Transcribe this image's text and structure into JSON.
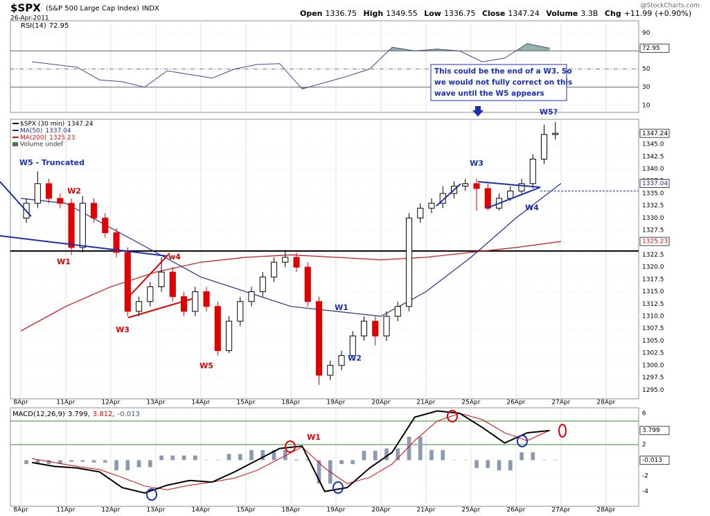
{
  "header": {
    "symbol": "$SPX",
    "name": "(S&P 500 Large Cap Index)",
    "exchange": "INDX",
    "date": "26-Apr-2011",
    "open_label": "Open",
    "open": 1336.75,
    "high_label": "High",
    "high": 1349.55,
    "low_label": "Low",
    "low": 1336.75,
    "close_label": "Close",
    "volume_label": "Volume",
    "volume": "3.3B",
    "chg_label": "Chg",
    "chg": "+11.99",
    "chg_pct": "(+0.90%)",
    "credit": "@StockCharts.com"
  },
  "chart_data": [
    {
      "type": "candlestick",
      "title": "$SPX (30 min)",
      "open": [
        1330,
        1333,
        1337,
        1334,
        1333,
        1324,
        1333,
        1330,
        1327,
        1323,
        1311,
        1313,
        1316,
        1319,
        1314,
        1311,
        1315,
        1312,
        1303,
        1309,
        1313,
        1315,
        1318,
        1321,
        1322,
        1320,
        1313,
        1298,
        1300,
        1302,
        1306,
        1309,
        1306,
        1310,
        1312,
        1330,
        1332,
        1333,
        1335,
        1336.5,
        1337,
        1336,
        1332,
        1334,
        1335.5,
        1337,
        1342,
        1347
      ],
      "high": [
        1334,
        1339.5,
        1338,
        1335,
        1334,
        1334.5,
        1334,
        1331,
        1328,
        1324,
        1314,
        1317,
        1322,
        1320,
        1315,
        1316,
        1316,
        1313,
        1310,
        1314,
        1316,
        1319,
        1322,
        1323.5,
        1323,
        1321,
        1314,
        1301,
        1303,
        1307,
        1310,
        1310,
        1311,
        1313,
        1331,
        1333,
        1334,
        1336.5,
        1337.5,
        1338,
        1338,
        1337,
        1335,
        1336.5,
        1338,
        1343,
        1349,
        1349.55
      ],
      "low": [
        1329,
        1332,
        1333,
        1332,
        1322.5,
        1323,
        1329,
        1326,
        1322,
        1310,
        1310,
        1312,
        1315,
        1313,
        1310,
        1310,
        1311,
        1302,
        1302.5,
        1308,
        1312,
        1314,
        1317,
        1320,
        1319,
        1312,
        1296,
        1297,
        1299,
        1301,
        1305,
        1304,
        1305,
        1309,
        1311,
        1329,
        1331,
        1332,
        1334,
        1335.5,
        1331.5,
        1331.5,
        1331.5,
        1333.5,
        1335,
        1336,
        1341,
        1346
      ],
      "close": [
        1333,
        1337,
        1334,
        1333,
        1324,
        1333,
        1330,
        1327,
        1323,
        1311,
        1313,
        1316,
        1319,
        1314,
        1311,
        1315,
        1312,
        1303,
        1309,
        1313,
        1315,
        1318,
        1321,
        1322,
        1320,
        1313,
        1298,
        1300,
        1302,
        1306,
        1309,
        1306,
        1310,
        1312,
        1330,
        1332,
        1333,
        1335,
        1336.5,
        1337,
        1336,
        1332,
        1334,
        1335.5,
        1337,
        1342,
        1347,
        1347.24
      ],
      "up_color": "#000000",
      "down_color": "#e00000",
      "series": [
        {
          "name": "MA(50)",
          "color": "#1f2f8f",
          "values": [
            1334,
            1333,
            1328,
            1323,
            1318,
            1315,
            1312,
            1311,
            1310,
            1315,
            1322,
            1330,
            1337.04
          ]
        },
        {
          "name": "MA(200)",
          "color": "#d01010",
          "values": [
            1307,
            1312,
            1316,
            1319,
            1321,
            1322,
            1322.5,
            1322,
            1321.5,
            1322,
            1323,
            1324,
            1325.23
          ]
        }
      ],
      "volume_label": "Volume undef",
      "ylim": [
        1293.2,
        1350.1
      ],
      "yticks": [
        {
          "value": 1295,
          "label": "1295.0"
        },
        1297.5,
        {
          "value": 1300,
          "label": "1300.0"
        },
        1302.5,
        {
          "value": 1305,
          "label": "1305.0"
        },
        1307.5,
        {
          "value": 1310,
          "label": "1310.0"
        },
        1312.5,
        {
          "value": 1315,
          "label": "1315.0"
        },
        1317.5,
        {
          "value": 1320,
          "label": "1320.0"
        },
        1322.5,
        {
          "value": 1325,
          "label": "1325.0"
        },
        1327.5,
        {
          "value": 1330,
          "label": "1330.0"
        },
        1332.5,
        {
          "value": 1335,
          "label": "1335.0"
        },
        1337.5,
        {
          "value": 1340,
          "label": "1340.0"
        },
        1342.5,
        {
          "value": 1345,
          "label": "1345.0"
        }
      ],
      "xlim": [
        -0.92,
        54.9
      ],
      "xticks": [
        {
          "value": 0,
          "label": "8Apr"
        },
        {
          "value": 4,
          "label": "11Apr"
        },
        {
          "value": 8,
          "label": "12Apr"
        },
        {
          "value": 12,
          "label": "13Apr"
        },
        {
          "value": 16,
          "label": "14Apr"
        },
        {
          "value": 20,
          "label": "15Apr"
        },
        {
          "value": 24,
          "label": "18Apr"
        },
        {
          "value": 28,
          "label": "19Apr"
        },
        {
          "value": 32,
          "label": "20Apr"
        },
        {
          "value": 36,
          "label": "21Apr"
        },
        {
          "value": 40,
          "label": "25Apr"
        },
        {
          "value": 44,
          "label": "26Apr"
        },
        {
          "value": 48,
          "label": "27Apr"
        },
        {
          "value": 52,
          "label": "28Apr"
        }
      ],
      "grid": true,
      "support_line": 1323.3,
      "dashed_line": 1335.5,
      "annotations": [
        {
          "text": "W5 - Truncated",
          "color": "#1a2fb0"
        },
        {
          "text": "W2",
          "color": "#e00000"
        },
        {
          "text": "W1",
          "color": "#e00000"
        },
        {
          "text": "W3",
          "color": "#e00000"
        },
        {
          "text": "w4",
          "color": "#e00000"
        },
        {
          "text": "W5",
          "color": "#e00000"
        },
        {
          "text": "W1",
          "color": "#1a2fb0"
        },
        {
          "text": "W2",
          "color": "#1a2fb0"
        },
        {
          "text": "W3",
          "color": "#1a2fb0"
        },
        {
          "text": "W4",
          "color": "#1a2fb0"
        },
        {
          "text": "W5?",
          "color": "#1a2fb0"
        }
      ],
      "note": [
        "This could be the end of a W3. So",
        "we would not fully correct on this",
        "wave until the W5 appears"
      ]
    },
    {
      "type": "line",
      "title": "RSI(14)",
      "color": "#3a4aa0",
      "fill_color": "#8fb5a5",
      "values": [
        58,
        55,
        52,
        38,
        36,
        30,
        48,
        44,
        40,
        50,
        55,
        56,
        28,
        35,
        42,
        50,
        74,
        70,
        72,
        70,
        58,
        62,
        78,
        72.95
      ],
      "ylim": [
        2.2,
        103.2
      ],
      "yticks": [
        10,
        30,
        50,
        70,
        90
      ],
      "levels": [
        30,
        70
      ],
      "midline": 50
    },
    {
      "type": "macd",
      "title": "MACD(12,26,9)",
      "separator": ",",
      "series": [
        {
          "color": "#000000",
          "values": [
            -0.3,
            -0.8,
            -1.0,
            -1.5,
            -3.5,
            -4.2,
            -3.2,
            -2.6,
            -2.8,
            -1.5,
            0,
            1.5,
            1.8,
            -4.0,
            -3.5,
            -1.0,
            1.0,
            5.5,
            6.3,
            6.0,
            4.2,
            2.2,
            3.5,
            3.799
          ]
        },
        {
          "color": "#e00000",
          "values": [
            0.2,
            -0.3,
            -0.8,
            -1.2,
            -2.2,
            -3.3,
            -3.8,
            -3.2,
            -2.8,
            -2.3,
            -1.3,
            0.2,
            1.7,
            -1.0,
            -3.0,
            -2.2,
            -0.5,
            2.5,
            5.0,
            6.0,
            5.2,
            3.5,
            2.5,
            3.812
          ]
        },
        {
          "color": "#8a9ab0",
          "values": [
            -0.5,
            -0.5,
            -0.2,
            -0.3,
            -1.3,
            -0.9,
            0.6,
            0.6,
            0,
            0.8,
            1.3,
            1.3,
            0.1,
            -3.0,
            -0.5,
            1.2,
            1.5,
            3.0,
            1.3,
            0,
            -1.0,
            -1.3,
            1.0,
            -0.013
          ]
        }
      ],
      "ylim": [
        -5.9,
        6.7
      ],
      "yticks": [
        -4,
        -2,
        2,
        6
      ],
      "levels": [
        5,
        2
      ],
      "annotation": {
        "text": "W1",
        "color": "#e00000"
      }
    }
  ]
}
